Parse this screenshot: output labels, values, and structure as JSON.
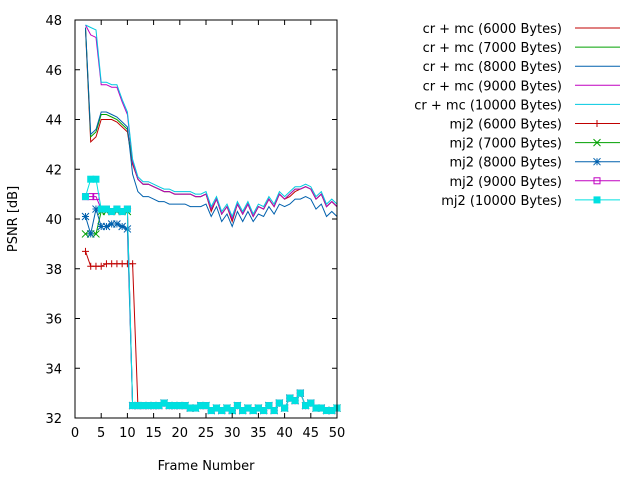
{
  "chart_data": {
    "type": "line",
    "title": "",
    "xlabel": "Frame Number",
    "ylabel": "PSNR [dB]",
    "xlim": [
      0,
      50
    ],
    "ylim": [
      32,
      48
    ],
    "xticks": [
      0,
      5,
      10,
      15,
      20,
      25,
      30,
      35,
      40,
      45,
      50
    ],
    "yticks": [
      32,
      34,
      36,
      38,
      40,
      42,
      44,
      46,
      48
    ],
    "grid": false,
    "legend": "outside-right",
    "series": [
      {
        "name": "cr + mc (6000 Bytes)",
        "color": "#c00000",
        "marker": "none",
        "x": [
          2,
          3,
          4,
          5,
          6,
          7,
          8,
          9,
          10,
          11,
          12,
          13,
          14,
          15,
          16,
          17,
          18,
          19,
          20,
          21,
          22,
          23,
          24,
          25,
          26,
          27,
          28,
          29,
          30,
          31,
          32,
          33,
          34,
          35,
          36,
          37,
          38,
          39,
          40,
          41,
          42,
          43,
          44,
          45,
          46,
          47,
          48,
          49,
          50
        ],
        "y": [
          47.6,
          43.1,
          43.3,
          44.0,
          44.0,
          44.0,
          43.9,
          43.7,
          43.5,
          42.2,
          41.6,
          41.4,
          41.4,
          41.3,
          41.2,
          41.1,
          41.1,
          41.0,
          41.0,
          41.0,
          41.0,
          40.9,
          40.9,
          41.0,
          40.3,
          40.8,
          40.2,
          40.5,
          39.9,
          40.6,
          40.2,
          40.6,
          40.1,
          40.5,
          40.4,
          40.8,
          40.5,
          41.0,
          40.8,
          40.9,
          41.1,
          41.2,
          41.3,
          41.2,
          40.8,
          41.0,
          40.5,
          40.7,
          40.5
        ]
      },
      {
        "name": "cr + mc (7000 Bytes)",
        "color": "#00a000",
        "marker": "none",
        "x": [
          2,
          3,
          4,
          5,
          6,
          7,
          8,
          9,
          10,
          11,
          12,
          13,
          14,
          15,
          16,
          17,
          18,
          19,
          20,
          21,
          22,
          23,
          24,
          25,
          26,
          27,
          28,
          29,
          30,
          31,
          32,
          33,
          34,
          35,
          36,
          37,
          38,
          39,
          40,
          41,
          42,
          43,
          44,
          45,
          46,
          47,
          48,
          49,
          50
        ],
        "y": [
          47.7,
          43.3,
          43.5,
          44.2,
          44.2,
          44.1,
          44.0,
          43.8,
          43.6,
          42.3,
          41.6,
          41.4,
          41.4,
          41.3,
          41.2,
          41.1,
          41.1,
          41.0,
          41.0,
          41.0,
          41.0,
          40.9,
          40.9,
          41.0,
          40.4,
          40.8,
          40.2,
          40.5,
          40.0,
          40.6,
          40.2,
          40.6,
          40.1,
          40.5,
          40.4,
          40.8,
          40.5,
          41.0,
          40.8,
          41.0,
          41.2,
          41.2,
          41.3,
          41.2,
          40.8,
          41.0,
          40.5,
          40.7,
          40.5
        ]
      },
      {
        "name": "cr + mc (8000 Bytes)",
        "color": "#0060ad",
        "marker": "none",
        "x": [
          2,
          3,
          4,
          5,
          6,
          7,
          8,
          9,
          10,
          11,
          12,
          13,
          14,
          15,
          16,
          17,
          18,
          19,
          20,
          21,
          22,
          23,
          24,
          25,
          26,
          27,
          28,
          29,
          30,
          31,
          32,
          33,
          34,
          35,
          36,
          37,
          38,
          39,
          40,
          41,
          42,
          43,
          44,
          45,
          46,
          47,
          48,
          49,
          50
        ],
        "y": [
          47.7,
          43.4,
          43.6,
          44.3,
          44.3,
          44.2,
          44.1,
          43.9,
          43.7,
          41.8,
          41.1,
          40.9,
          40.9,
          40.8,
          40.7,
          40.7,
          40.6,
          40.6,
          40.6,
          40.6,
          40.5,
          40.5,
          40.5,
          40.6,
          40.1,
          40.5,
          39.9,
          40.2,
          39.7,
          40.3,
          39.9,
          40.3,
          39.9,
          40.2,
          40.1,
          40.5,
          40.2,
          40.6,
          40.5,
          40.6,
          40.8,
          40.8,
          40.9,
          40.8,
          40.4,
          40.6,
          40.1,
          40.3,
          40.1
        ]
      },
      {
        "name": "cr + mc (9000 Bytes)",
        "color": "#c000c0",
        "marker": "none",
        "x": [
          2,
          3,
          4,
          5,
          6,
          7,
          8,
          9,
          10,
          11,
          12,
          13,
          14,
          15,
          16,
          17,
          18,
          19,
          20,
          21,
          22,
          23,
          24,
          25,
          26,
          27,
          28,
          29,
          30,
          31,
          32,
          33,
          34,
          35,
          36,
          37,
          38,
          39,
          40,
          41,
          42,
          43,
          44,
          45,
          46,
          47,
          48,
          49,
          50
        ],
        "y": [
          47.8,
          47.4,
          47.3,
          45.4,
          45.4,
          45.3,
          45.3,
          44.7,
          44.2,
          42.3,
          41.6,
          41.4,
          41.4,
          41.3,
          41.2,
          41.1,
          41.1,
          41.0,
          41.0,
          41.0,
          41.0,
          40.9,
          40.9,
          41.0,
          40.4,
          40.8,
          40.2,
          40.5,
          40.0,
          40.6,
          40.2,
          40.6,
          40.1,
          40.5,
          40.4,
          40.8,
          40.5,
          41.0,
          40.8,
          41.0,
          41.2,
          41.2,
          41.3,
          41.2,
          40.8,
          41.0,
          40.5,
          40.7,
          40.5
        ]
      },
      {
        "name": "cr + mc (10000 Bytes)",
        "color": "#00c8e0",
        "marker": "none",
        "x": [
          2,
          3,
          4,
          5,
          6,
          7,
          8,
          9,
          10,
          11,
          12,
          13,
          14,
          15,
          16,
          17,
          18,
          19,
          20,
          21,
          22,
          23,
          24,
          25,
          26,
          27,
          28,
          29,
          30,
          31,
          32,
          33,
          34,
          35,
          36,
          37,
          38,
          39,
          40,
          41,
          42,
          43,
          44,
          45,
          46,
          47,
          48,
          49,
          50
        ],
        "y": [
          47.8,
          47.7,
          47.6,
          45.5,
          45.5,
          45.4,
          45.4,
          44.8,
          44.3,
          42.4,
          41.7,
          41.5,
          41.5,
          41.4,
          41.3,
          41.2,
          41.2,
          41.1,
          41.1,
          41.1,
          41.1,
          41.0,
          41.0,
          41.1,
          40.5,
          40.9,
          40.3,
          40.6,
          40.1,
          40.7,
          40.3,
          40.7,
          40.2,
          40.6,
          40.5,
          40.9,
          40.6,
          41.1,
          40.9,
          41.1,
          41.3,
          41.3,
          41.4,
          41.3,
          40.9,
          41.1,
          40.6,
          40.8,
          40.6
        ]
      },
      {
        "name": "mj2 (6000 Bytes)",
        "color": "#c00000",
        "marker": "plus",
        "x": [
          2,
          3,
          4,
          5,
          6,
          7,
          8,
          9,
          10,
          11,
          12,
          13,
          14,
          15,
          16,
          17,
          18,
          19,
          20,
          21,
          22,
          23,
          24,
          25,
          26,
          27,
          28,
          29,
          30,
          31,
          32,
          33,
          34,
          35,
          36,
          37,
          38,
          39,
          40,
          41,
          42,
          43,
          44,
          45,
          46,
          47,
          48,
          49,
          50
        ],
        "y": [
          38.7,
          38.1,
          38.1,
          38.1,
          38.2,
          38.2,
          38.2,
          38.2,
          38.2,
          38.2,
          32.5,
          32.5,
          32.5,
          32.5,
          32.5,
          32.6,
          32.5,
          32.5,
          32.5,
          32.5,
          32.4,
          32.4,
          32.5,
          32.5,
          32.3,
          32.4,
          32.3,
          32.4,
          32.3,
          32.5,
          32.3,
          32.4,
          32.3,
          32.4,
          32.3,
          32.5,
          32.3,
          32.6,
          32.4,
          32.8,
          32.7,
          33.0,
          32.5,
          32.6,
          32.4,
          32.4,
          32.3,
          32.3,
          32.4
        ]
      },
      {
        "name": "mj2 (7000 Bytes)",
        "color": "#00a000",
        "marker": "cross",
        "x": [
          2,
          3,
          4,
          5,
          6,
          7,
          8,
          9,
          10,
          11,
          12,
          13,
          14,
          15,
          16,
          17,
          18,
          19,
          20,
          21,
          22,
          23,
          24,
          25,
          26,
          27,
          28,
          29,
          30,
          31,
          32,
          33,
          34,
          35,
          36,
          37,
          38,
          39,
          40,
          41,
          42,
          43,
          44,
          45,
          46,
          47,
          48,
          49,
          50
        ],
        "y": [
          39.4,
          39.4,
          39.4,
          40.3,
          40.3,
          40.3,
          40.3,
          40.3,
          40.3,
          32.5,
          32.5,
          32.5,
          32.5,
          32.5,
          32.5,
          32.6,
          32.5,
          32.5,
          32.5,
          32.5,
          32.4,
          32.4,
          32.5,
          32.5,
          32.3,
          32.4,
          32.3,
          32.4,
          32.3,
          32.5,
          32.3,
          32.4,
          32.3,
          32.4,
          32.3,
          32.5,
          32.3,
          32.6,
          32.4,
          32.8,
          32.7,
          33.0,
          32.5,
          32.6,
          32.4,
          32.4,
          32.3,
          32.3,
          32.4
        ]
      },
      {
        "name": "mj2 (8000 Bytes)",
        "color": "#0060ad",
        "marker": "star",
        "x": [
          2,
          3,
          4,
          5,
          6,
          7,
          8,
          9,
          10,
          11,
          12,
          13,
          14,
          15,
          16,
          17,
          18,
          19,
          20,
          21,
          22,
          23,
          24,
          25,
          26,
          27,
          28,
          29,
          30,
          31,
          32,
          33,
          34,
          35,
          36,
          37,
          38,
          39,
          40,
          41,
          42,
          43,
          44,
          45,
          46,
          47,
          48,
          49,
          50
        ],
        "y": [
          40.1,
          39.4,
          40.4,
          39.7,
          39.7,
          39.8,
          39.8,
          39.7,
          39.6,
          32.5,
          32.5,
          32.5,
          32.5,
          32.5,
          32.5,
          32.6,
          32.5,
          32.5,
          32.5,
          32.5,
          32.4,
          32.4,
          32.5,
          32.5,
          32.3,
          32.4,
          32.3,
          32.4,
          32.3,
          32.5,
          32.3,
          32.4,
          32.3,
          32.4,
          32.3,
          32.5,
          32.3,
          32.6,
          32.4,
          32.8,
          32.7,
          33.0,
          32.5,
          32.6,
          32.4,
          32.4,
          32.3,
          32.3,
          32.4
        ]
      },
      {
        "name": "mj2 (9000 Bytes)",
        "color": "#c000c0",
        "marker": "open-square",
        "x": [
          2,
          3,
          4,
          5,
          6,
          7,
          8,
          9,
          10,
          11,
          12,
          13,
          14,
          15,
          16,
          17,
          18,
          19,
          20,
          21,
          22,
          23,
          24,
          25,
          26,
          27,
          28,
          29,
          30,
          31,
          32,
          33,
          34,
          35,
          36,
          37,
          38,
          39,
          40,
          41,
          42,
          43,
          44,
          45,
          46,
          47,
          48,
          49,
          50
        ],
        "y": [
          40.9,
          40.9,
          40.9,
          40.4,
          40.4,
          40.3,
          40.4,
          40.3,
          40.4,
          32.5,
          32.5,
          32.5,
          32.5,
          32.5,
          32.5,
          32.6,
          32.5,
          32.5,
          32.5,
          32.5,
          32.4,
          32.4,
          32.5,
          32.5,
          32.3,
          32.4,
          32.3,
          32.4,
          32.3,
          32.5,
          32.3,
          32.4,
          32.3,
          32.4,
          32.3,
          32.5,
          32.3,
          32.6,
          32.4,
          32.8,
          32.7,
          33.0,
          32.5,
          32.6,
          32.4,
          32.4,
          32.3,
          32.3,
          32.4
        ]
      },
      {
        "name": "mj2 (10000 Bytes)",
        "color": "#00e0e0",
        "marker": "filled-square",
        "x": [
          2,
          3,
          4,
          5,
          6,
          7,
          8,
          9,
          10,
          11,
          12,
          13,
          14,
          15,
          16,
          17,
          18,
          19,
          20,
          21,
          22,
          23,
          24,
          25,
          26,
          27,
          28,
          29,
          30,
          31,
          32,
          33,
          34,
          35,
          36,
          37,
          38,
          39,
          40,
          41,
          42,
          43,
          44,
          45,
          46,
          47,
          48,
          49,
          50
        ],
        "y": [
          40.9,
          41.6,
          41.6,
          40.4,
          40.4,
          40.3,
          40.4,
          40.3,
          40.4,
          32.5,
          32.5,
          32.5,
          32.5,
          32.5,
          32.5,
          32.6,
          32.5,
          32.5,
          32.5,
          32.5,
          32.4,
          32.4,
          32.5,
          32.5,
          32.3,
          32.4,
          32.3,
          32.4,
          32.3,
          32.5,
          32.3,
          32.4,
          32.3,
          32.4,
          32.3,
          32.5,
          32.3,
          32.6,
          32.4,
          32.8,
          32.7,
          33.0,
          32.5,
          32.6,
          32.4,
          32.4,
          32.3,
          32.3,
          32.4
        ]
      }
    ]
  }
}
